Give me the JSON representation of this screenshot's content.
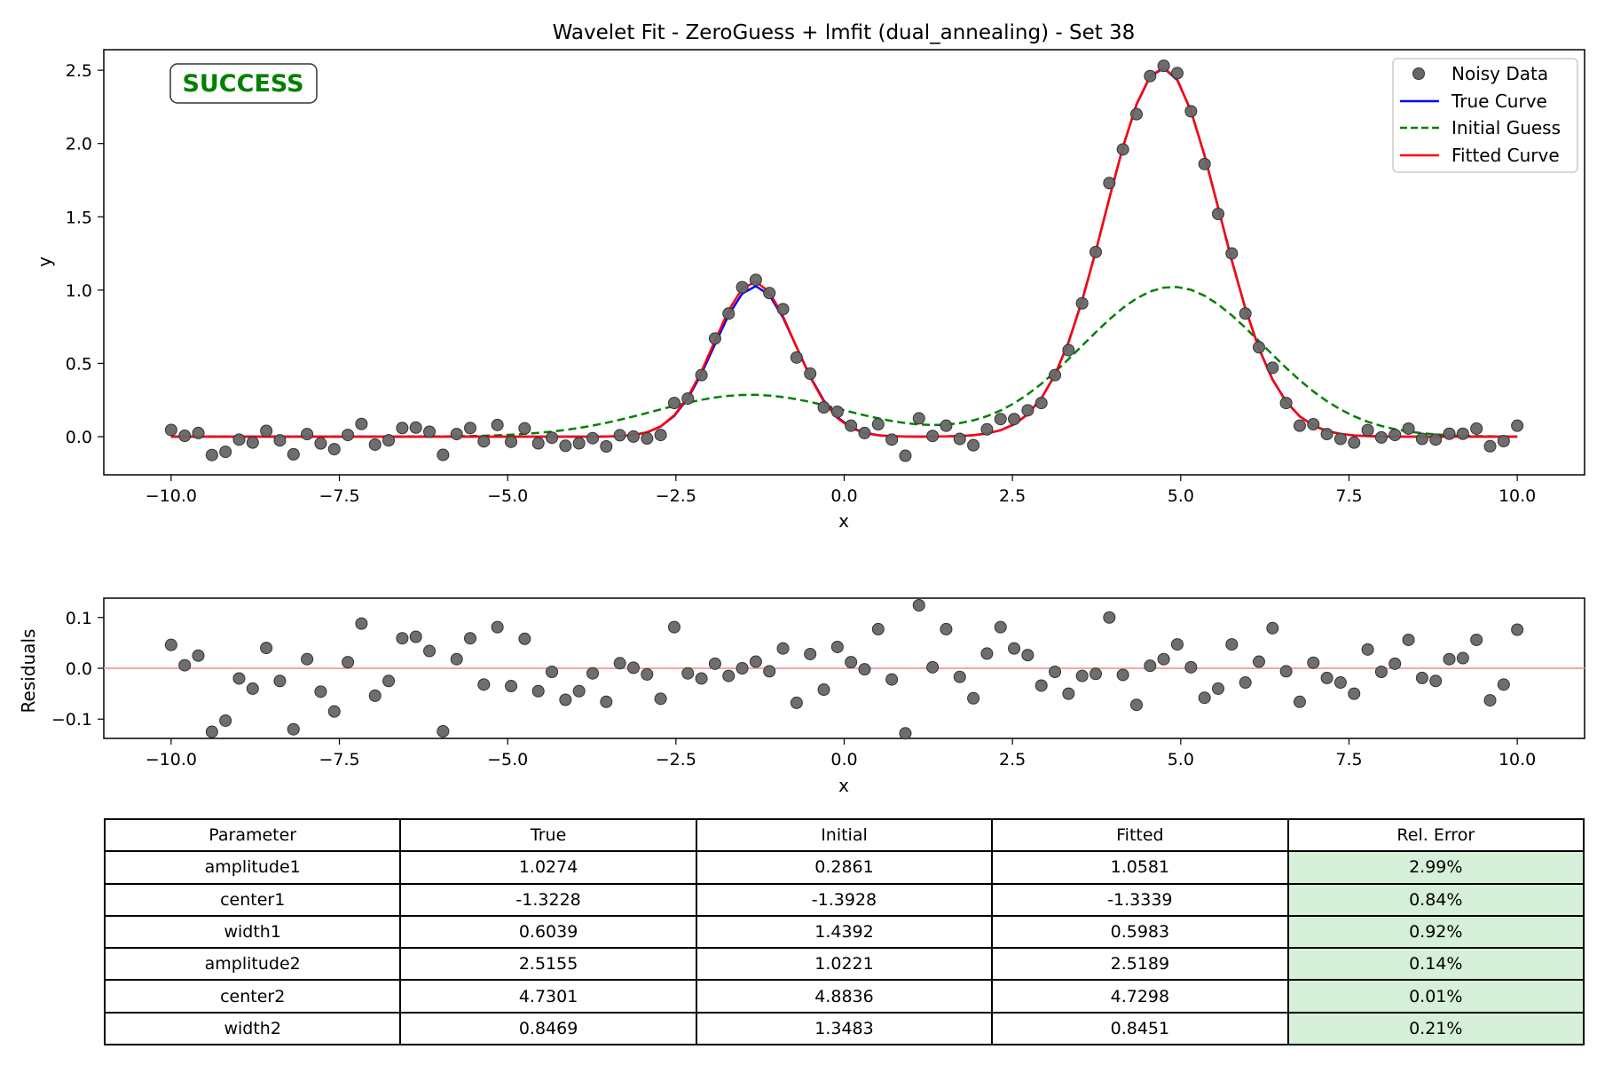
{
  "colors": {
    "data_points": "#666666",
    "true_curve": "#0000ff",
    "initial_guess": "#008000",
    "fitted_curve": "#ff0000",
    "success_text": "#008000",
    "zero_line": "#f4a6a6",
    "good_error_cell": "#d6f0d9"
  },
  "main_chart": {
    "title": "Wavelet Fit - ZeroGuess + lmfit (dual_annealing) - Set 38",
    "xlabel": "x",
    "ylabel": "y",
    "status_badge": "SUCCESS",
    "legend": [
      "Noisy Data",
      "True Curve",
      "Initial Guess",
      "Fitted Curve"
    ],
    "legend_position": "top-right",
    "xticks": [
      "−10.0",
      "−7.5",
      "−5.0",
      "−2.5",
      "0.0",
      "2.5",
      "5.0",
      "7.5",
      "10.0"
    ],
    "yticks": [
      "0.0",
      "0.5",
      "1.0",
      "1.5",
      "2.0",
      "2.5"
    ]
  },
  "residual_chart": {
    "xlabel": "x",
    "ylabel": "Residuals",
    "xticks": [
      "−10.0",
      "−7.5",
      "−5.0",
      "−2.5",
      "0.0",
      "2.5",
      "5.0",
      "7.5",
      "10.0"
    ],
    "yticks": [
      "0.1",
      "0.0",
      "−0.1"
    ]
  },
  "chart_data": [
    {
      "type": "line",
      "title": "Wavelet Fit - ZeroGuess + lmfit (dual_annealing) - Set 38",
      "xlabel": "x",
      "ylabel": "y",
      "xlim": [
        -11,
        11
      ],
      "ylim": [
        -0.26,
        2.64
      ],
      "grid": false,
      "legend_position": "top-right",
      "series": [
        {
          "name": "Noisy Data",
          "style": "scatter",
          "x": [
            -10.0,
            -9.798,
            -9.596,
            -9.394,
            -9.192,
            -8.99,
            -8.788,
            -8.586,
            -8.384,
            -8.182,
            -7.98,
            -7.778,
            -7.576,
            -7.374,
            -7.172,
            -6.97,
            -6.768,
            -6.566,
            -6.364,
            -6.162,
            -5.96,
            -5.758,
            -5.556,
            -5.354,
            -5.152,
            -4.949,
            -4.747,
            -4.545,
            -4.343,
            -4.141,
            -3.939,
            -3.737,
            -3.535,
            -3.333,
            -3.131,
            -2.929,
            -2.727,
            -2.525,
            -2.323,
            -2.121,
            -1.919,
            -1.717,
            -1.515,
            -1.313,
            -1.111,
            -0.909,
            -0.707,
            -0.505,
            -0.303,
            -0.101,
            0.101,
            0.303,
            0.505,
            0.707,
            0.909,
            1.111,
            1.313,
            1.515,
            1.717,
            1.919,
            2.121,
            2.323,
            2.525,
            2.727,
            2.929,
            3.131,
            3.333,
            3.535,
            3.737,
            3.939,
            4.141,
            4.343,
            4.545,
            4.747,
            4.949,
            5.152,
            5.354,
            5.556,
            5.758,
            5.96,
            6.162,
            6.364,
            6.566,
            6.768,
            6.97,
            7.172,
            7.374,
            7.576,
            7.778,
            7.98,
            8.182,
            8.384,
            8.586,
            8.788,
            8.99,
            9.192,
            9.394,
            9.596,
            9.798,
            10.0
          ],
          "y": [
            0.046,
            0.006,
            0.025,
            -0.125,
            -0.103,
            -0.02,
            -0.04,
            0.04,
            -0.025,
            -0.12,
            0.018,
            -0.046,
            -0.085,
            0.012,
            0.087,
            -0.054,
            -0.025,
            0.059,
            0.062,
            0.034,
            -0.124,
            0.018,
            0.059,
            -0.032,
            0.08,
            -0.035,
            0.057,
            -0.045,
            -0.007,
            -0.062,
            -0.045,
            -0.01,
            -0.066,
            0.01,
            0.001,
            -0.012,
            0.012,
            0.23,
            0.26,
            0.42,
            0.67,
            0.84,
            1.02,
            1.07,
            0.98,
            0.87,
            0.54,
            0.43,
            0.2,
            0.17,
            0.075,
            0.025,
            0.085,
            -0.02,
            -0.13,
            0.125,
            0.005,
            0.075,
            -0.015,
            -0.058,
            0.05,
            0.12,
            0.12,
            0.18,
            0.23,
            0.42,
            0.59,
            0.91,
            1.26,
            1.73,
            1.96,
            2.2,
            2.46,
            2.53,
            2.48,
            2.22,
            1.86,
            1.52,
            1.25,
            0.84,
            0.61,
            0.47,
            0.23,
            0.075,
            0.085,
            0.018,
            -0.015,
            -0.04,
            0.045,
            -0.005,
            0.012,
            0.055,
            -0.015,
            -0.02,
            0.02,
            0.02,
            0.055,
            -0.065,
            -0.03,
            0.075
          ]
        },
        {
          "name": "True Curve",
          "style": "solid",
          "function": "a1*exp(-(x-c1)^2/(2*w1^2)) + a2*exp(-(x-c2)^2/(2*w2^2))",
          "params": {
            "a1": 1.0274,
            "c1": -1.3228,
            "w1": 0.6039,
            "a2": 2.5155,
            "c2": 4.7301,
            "w2": 0.8469
          }
        },
        {
          "name": "Initial Guess",
          "style": "dashed",
          "function": "a1*exp(-(x-c1)^2/(2*w1^2)) + a2*exp(-(x-c2)^2/(2*w2^2))",
          "params": {
            "a1": 0.2861,
            "c1": -1.3928,
            "w1": 1.4392,
            "a2": 1.0221,
            "c2": 4.8836,
            "w2": 1.3483
          }
        },
        {
          "name": "Fitted Curve",
          "style": "solid",
          "function": "a1*exp(-(x-c1)^2/(2*w1^2)) + a2*exp(-(x-c2)^2/(2*w2^2))",
          "params": {
            "a1": 1.0581,
            "c1": -1.3339,
            "w1": 0.5983,
            "a2": 2.5189,
            "c2": 4.7298,
            "w2": 0.8451
          }
        }
      ],
      "annotations": [
        "SUCCESS"
      ]
    },
    {
      "type": "scatter",
      "xlabel": "x",
      "ylabel": "Residuals",
      "xlim": [
        -11,
        11
      ],
      "ylim": [
        -0.138,
        0.138
      ],
      "grid": false,
      "reference_line_y": 0.0,
      "series": [
        {
          "x": [
            -10.0,
            -9.798,
            -9.596,
            -9.394,
            -9.192,
            -8.99,
            -8.788,
            -8.586,
            -8.384,
            -8.182,
            -7.98,
            -7.778,
            -7.576,
            -7.374,
            -7.172,
            -6.97,
            -6.768,
            -6.566,
            -6.364,
            -6.162,
            -5.96,
            -5.758,
            -5.556,
            -5.354,
            -5.152,
            -4.949,
            -4.747,
            -4.545,
            -4.343,
            -4.141,
            -3.939,
            -3.737,
            -3.535,
            -3.333,
            -3.131,
            -2.929,
            -2.727,
            -2.525,
            -2.323,
            -2.121,
            -1.919,
            -1.717,
            -1.515,
            -1.313,
            -1.111,
            -0.909,
            -0.707,
            -0.505,
            -0.303,
            -0.101,
            0.101,
            0.303,
            0.505,
            0.707,
            0.909,
            1.111,
            1.313,
            1.515,
            1.717,
            1.919,
            2.121,
            2.323,
            2.525,
            2.727,
            2.929,
            3.131,
            3.333,
            3.535,
            3.737,
            3.939,
            4.141,
            4.343,
            4.545,
            4.747,
            4.949,
            5.152,
            5.354,
            5.556,
            5.758,
            5.96,
            6.162,
            6.364,
            6.566,
            6.768,
            6.97,
            7.172,
            7.374,
            7.576,
            7.778,
            7.98,
            8.182,
            8.384,
            8.586,
            8.788,
            8.99,
            9.192,
            9.394,
            9.596,
            9.798,
            10.0
          ],
          "y": [
            0.046,
            0.006,
            0.025,
            -0.125,
            -0.103,
            -0.02,
            -0.04,
            0.04,
            -0.025,
            -0.12,
            0.018,
            -0.046,
            -0.085,
            0.012,
            0.088,
            -0.054,
            -0.025,
            0.059,
            0.062,
            0.034,
            -0.124,
            0.018,
            0.059,
            -0.032,
            0.081,
            -0.035,
            0.058,
            -0.045,
            -0.007,
            -0.062,
            -0.045,
            -0.01,
            -0.066,
            0.01,
            0.001,
            -0.012,
            -0.06,
            0.081,
            -0.01,
            -0.02,
            0.009,
            -0.015,
            0.0,
            0.013,
            -0.006,
            0.039,
            -0.068,
            0.028,
            -0.042,
            0.042,
            0.012,
            -0.002,
            0.077,
            -0.022,
            -0.128,
            0.124,
            0.002,
            0.077,
            -0.017,
            -0.059,
            0.029,
            0.081,
            0.039,
            0.026,
            -0.034,
            -0.007,
            -0.05,
            -0.015,
            -0.011,
            0.1,
            -0.013,
            -0.072,
            0.005,
            0.018,
            0.047,
            0.002,
            -0.058,
            -0.04,
            0.047,
            -0.028,
            0.013,
            0.079,
            -0.006,
            -0.066,
            0.011,
            -0.019,
            -0.028,
            -0.05,
            0.037,
            -0.007,
            0.009,
            0.056,
            -0.019,
            -0.025,
            0.018,
            0.02,
            0.056,
            -0.063,
            -0.032,
            0.076
          ]
        }
      ]
    },
    {
      "type": "table",
      "columns": [
        "Parameter",
        "True",
        "Initial",
        "Fitted",
        "Rel. Error"
      ],
      "rows": [
        [
          "amplitude1",
          "1.0274",
          "0.2861",
          "1.0581",
          "2.99%"
        ],
        [
          "center1",
          "-1.3228",
          "-1.3928",
          "-1.3339",
          "0.84%"
        ],
        [
          "width1",
          "0.6039",
          "1.4392",
          "0.5983",
          "0.92%"
        ],
        [
          "amplitude2",
          "2.5155",
          "1.0221",
          "2.5189",
          "0.14%"
        ],
        [
          "center2",
          "4.7301",
          "4.8836",
          "4.7298",
          "0.01%"
        ],
        [
          "width2",
          "0.8469",
          "1.3483",
          "0.8451",
          "0.21%"
        ]
      ]
    }
  ]
}
